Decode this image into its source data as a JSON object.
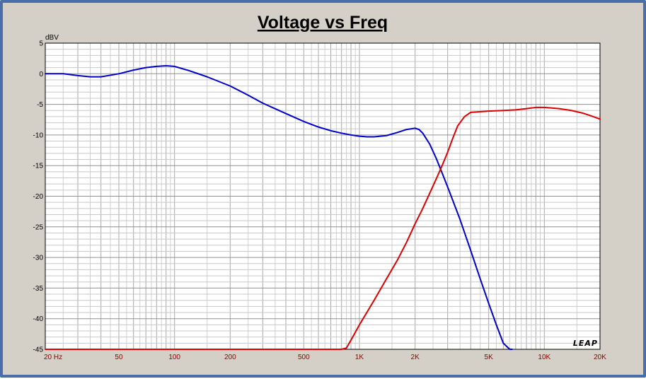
{
  "chart_data": {
    "type": "line",
    "title": "Voltage vs Freq",
    "ylabel": "dBV",
    "xscale": "log",
    "xlim": [
      20,
      20000
    ],
    "ylim": [
      -45,
      5
    ],
    "grid": true,
    "yticks": [
      5,
      0,
      -5,
      -10,
      -15,
      -20,
      -25,
      -30,
      -35,
      -40,
      -45
    ],
    "ytick_labels": [
      "5",
      "0",
      "-5",
      "-10",
      "-15",
      "-20",
      "-25",
      "-30",
      "-35",
      "-40",
      "-45"
    ],
    "xticks": [
      20,
      50,
      100,
      200,
      500,
      1000,
      2000,
      5000,
      10000,
      20000
    ],
    "xtick_labels": [
      "20  Hz",
      "50",
      "100",
      "200",
      "500",
      "1K",
      "2K",
      "5K",
      "10K",
      "20K"
    ],
    "logo_text": "LEAP",
    "series": [
      {
        "color": "#0000cc",
        "x": [
          20,
          25,
          30,
          35,
          40,
          50,
          60,
          70,
          80,
          90,
          100,
          120,
          150,
          200,
          250,
          300,
          400,
          500,
          600,
          700,
          800,
          900,
          1000,
          1100,
          1200,
          1400,
          1600,
          1800,
          2000,
          2100,
          2200,
          2400,
          2600,
          2800,
          3000,
          3500,
          4000,
          4500,
          5000,
          5500,
          6000,
          6500,
          6700
        ],
        "y": [
          0.0,
          0.0,
          -0.3,
          -0.5,
          -0.5,
          0.0,
          0.6,
          1.0,
          1.2,
          1.3,
          1.2,
          0.5,
          -0.5,
          -2.0,
          -3.5,
          -4.8,
          -6.5,
          -7.8,
          -8.7,
          -9.3,
          -9.7,
          -10.0,
          -10.2,
          -10.3,
          -10.3,
          -10.1,
          -9.6,
          -9.1,
          -8.9,
          -9.1,
          -9.7,
          -11.5,
          -13.8,
          -16.2,
          -18.5,
          -23.8,
          -28.9,
          -33.5,
          -37.5,
          -41.0,
          -44.0,
          -45.0,
          -45.0
        ]
      },
      {
        "color": "#dd0000",
        "x": [
          20,
          50,
          100,
          200,
          500,
          700,
          800,
          850,
          900,
          1000,
          1200,
          1400,
          1600,
          1800,
          2000,
          2200,
          2400,
          2600,
          2800,
          3000,
          3200,
          3400,
          3700,
          4000,
          5000,
          6000,
          7000,
          8000,
          9000,
          10000,
          11000,
          12000,
          14000,
          16000,
          18000,
          20000
        ],
        "y": [
          -45.0,
          -45.0,
          -45.0,
          -45.0,
          -45.0,
          -45.0,
          -45.0,
          -44.8,
          -43.5,
          -41.0,
          -37.0,
          -33.5,
          -30.5,
          -27.5,
          -24.5,
          -22.0,
          -19.5,
          -17.2,
          -15.0,
          -12.8,
          -10.5,
          -8.5,
          -7.0,
          -6.3,
          -6.1,
          -6.0,
          -5.9,
          -5.7,
          -5.5,
          -5.5,
          -5.6,
          -5.7,
          -6.0,
          -6.4,
          -6.9,
          -7.4
        ]
      }
    ]
  }
}
